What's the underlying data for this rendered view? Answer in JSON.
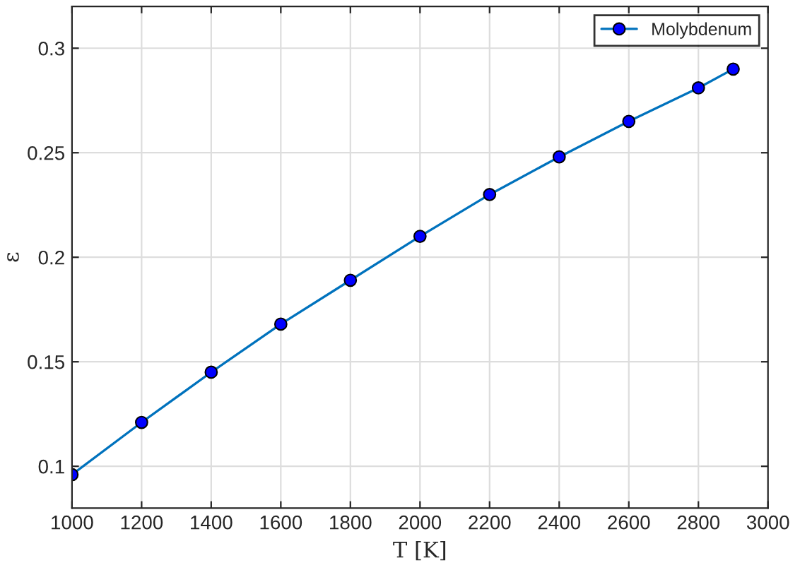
{
  "chart_data": {
    "type": "line",
    "xlabel": "T [K]",
    "ylabel": "ε",
    "x": [
      1000,
      1200,
      1400,
      1600,
      1800,
      2000,
      2200,
      2400,
      2600,
      2800,
      2900
    ],
    "series": [
      {
        "name": "Molybdenum",
        "color": "#0072bd",
        "values": [
          0.096,
          0.121,
          0.145,
          0.168,
          0.189,
          0.21,
          0.23,
          0.248,
          0.265,
          0.281,
          0.29
        ]
      }
    ],
    "xlim": [
      1000,
      3000
    ],
    "xticks": [
      1000,
      1200,
      1400,
      1600,
      1800,
      2000,
      2200,
      2400,
      2600,
      2800,
      3000
    ],
    "ylim": [
      0.08,
      0.32
    ],
    "yticks": [
      0.1,
      0.15,
      0.2,
      0.25,
      0.3
    ],
    "grid": true,
    "legend": "top right",
    "marker": "circle",
    "line_style": "solid"
  }
}
